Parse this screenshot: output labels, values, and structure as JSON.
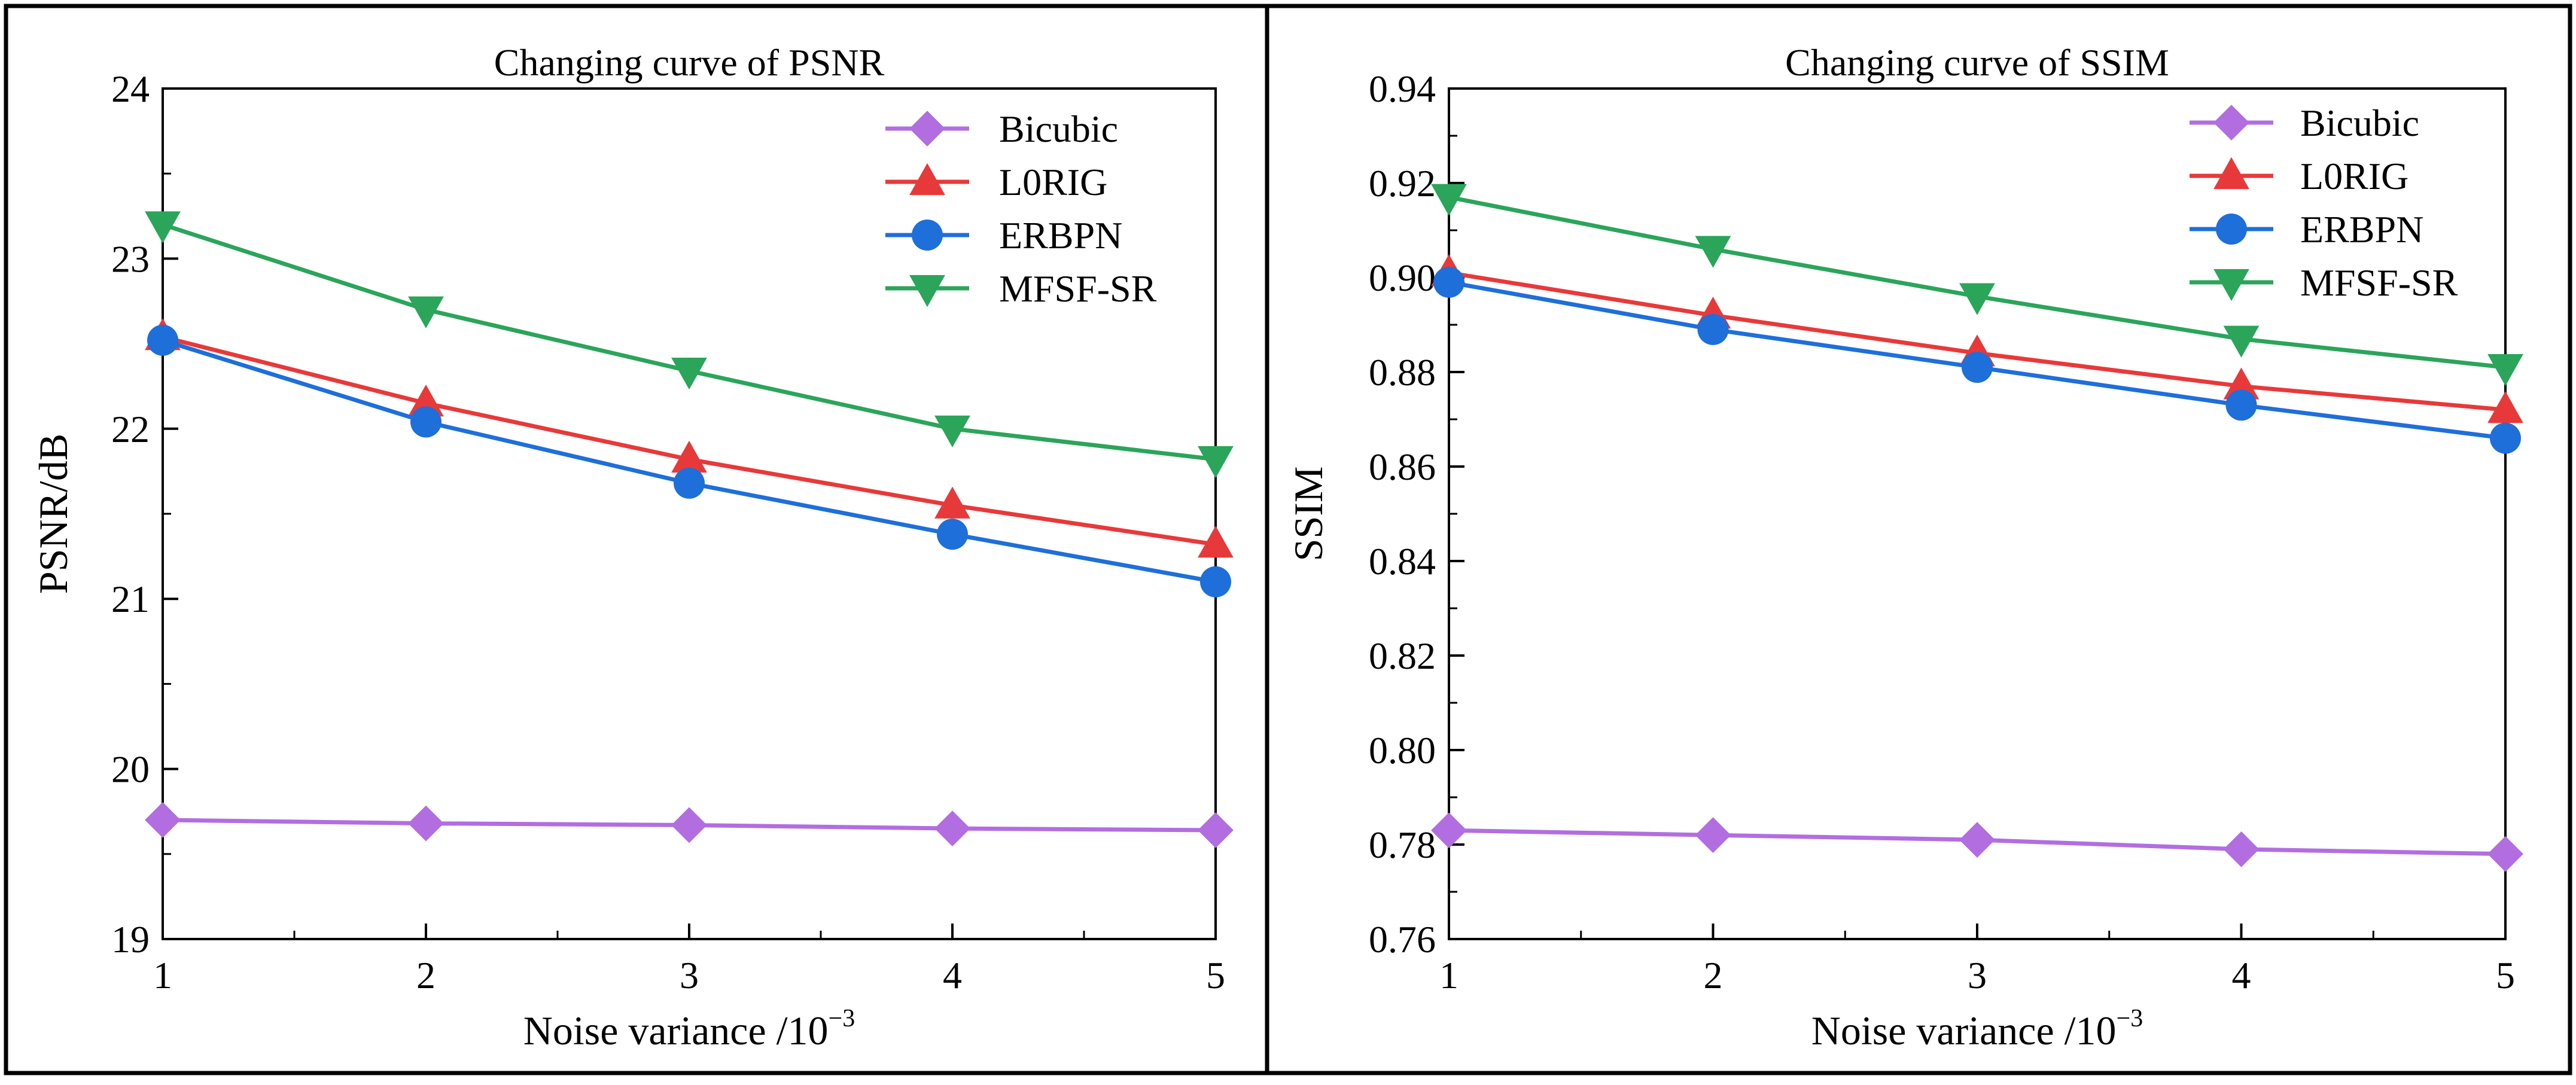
{
  "chart_data": [
    {
      "type": "line",
      "title": "Changing curve of PSNR",
      "xlabel": "Noise variance /10",
      "xlabel_exponent": "−3",
      "ylabel": "PSNR/dB",
      "x": [
        1,
        2,
        3,
        4,
        5
      ],
      "x_ticks": [
        "1",
        "2",
        "3",
        "4",
        "5"
      ],
      "xlim": [
        1,
        5
      ],
      "ylim": [
        19,
        24
      ],
      "y_ticks": [
        "19",
        "20",
        "21",
        "22",
        "23",
        "24"
      ],
      "grid": false,
      "legend_position": "top-right",
      "series": [
        {
          "name": "Bicubic",
          "color": "#b26ee0",
          "marker": "diamond",
          "values": [
            19.7,
            19.68,
            19.67,
            19.65,
            19.64
          ]
        },
        {
          "name": "L0RIG",
          "color": "#e8393a",
          "marker": "triangle-up",
          "values": [
            22.54,
            22.15,
            21.82,
            21.55,
            21.32
          ]
        },
        {
          "name": "ERBPN",
          "color": "#1e6fd9",
          "marker": "circle",
          "values": [
            22.52,
            22.04,
            21.68,
            21.38,
            21.1
          ]
        },
        {
          "name": "MFSF-SR",
          "color": "#2aa55a",
          "marker": "triangle-down",
          "values": [
            23.2,
            22.7,
            22.34,
            22.0,
            21.82
          ]
        }
      ]
    },
    {
      "type": "line",
      "title": "Changing curve of SSIM",
      "xlabel": "Noise variance /10",
      "xlabel_exponent": "−3",
      "ylabel": "SSIM",
      "x": [
        1,
        2,
        3,
        4,
        5
      ],
      "x_ticks": [
        "1",
        "2",
        "3",
        "4",
        "5"
      ],
      "xlim": [
        1,
        5
      ],
      "ylim": [
        0.76,
        0.94
      ],
      "y_ticks": [
        "0.76",
        "0.78",
        "0.80",
        "0.82",
        "0.84",
        "0.86",
        "0.88",
        "0.90",
        "0.92",
        "0.94"
      ],
      "grid": false,
      "legend_position": "top-right",
      "series": [
        {
          "name": "Bicubic",
          "color": "#b26ee0",
          "marker": "diamond",
          "values": [
            0.783,
            0.782,
            0.781,
            0.779,
            0.778
          ]
        },
        {
          "name": "L0RIG",
          "color": "#e8393a",
          "marker": "triangle-up",
          "values": [
            0.901,
            0.892,
            0.884,
            0.877,
            0.872
          ]
        },
        {
          "name": "ERBPN",
          "color": "#1e6fd9",
          "marker": "circle",
          "values": [
            0.899,
            0.889,
            0.881,
            0.873,
            0.866
          ]
        },
        {
          "name": "MFSF-SR",
          "color": "#2aa55a",
          "marker": "triangle-down",
          "values": [
            0.917,
            0.906,
            0.896,
            0.887,
            0.881
          ]
        }
      ]
    }
  ]
}
